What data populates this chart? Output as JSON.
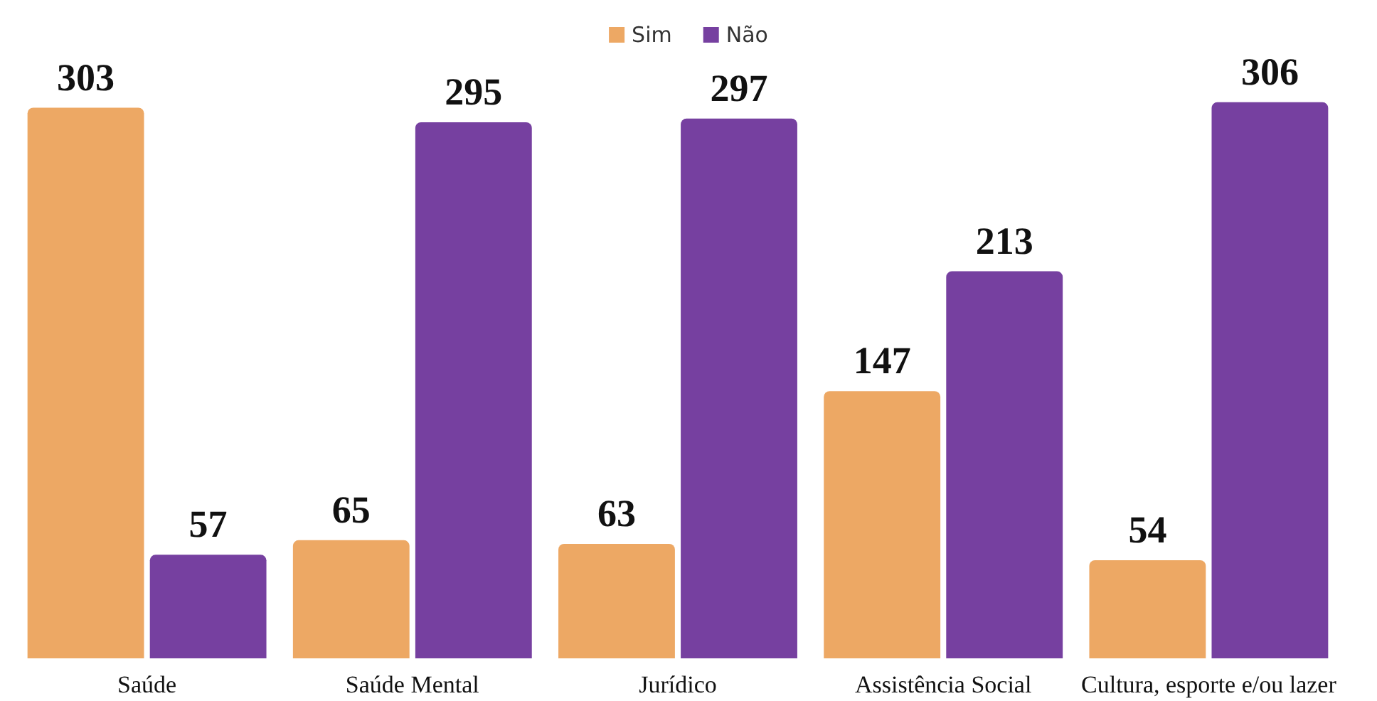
{
  "chart_data": {
    "type": "bar",
    "categories": [
      "Saúde",
      "Saúde Mental",
      "Jurídico",
      "Assistência Social",
      "Cultura, esporte e/ou lazer"
    ],
    "series": [
      {
        "name": "Sim",
        "color": "#eda864",
        "values": [
          303,
          65,
          63,
          147,
          54
        ]
      },
      {
        "name": "Não",
        "color": "#7640a0",
        "values": [
          57,
          295,
          297,
          213,
          306
        ]
      }
    ],
    "data_labels": true,
    "legend": "top"
  }
}
